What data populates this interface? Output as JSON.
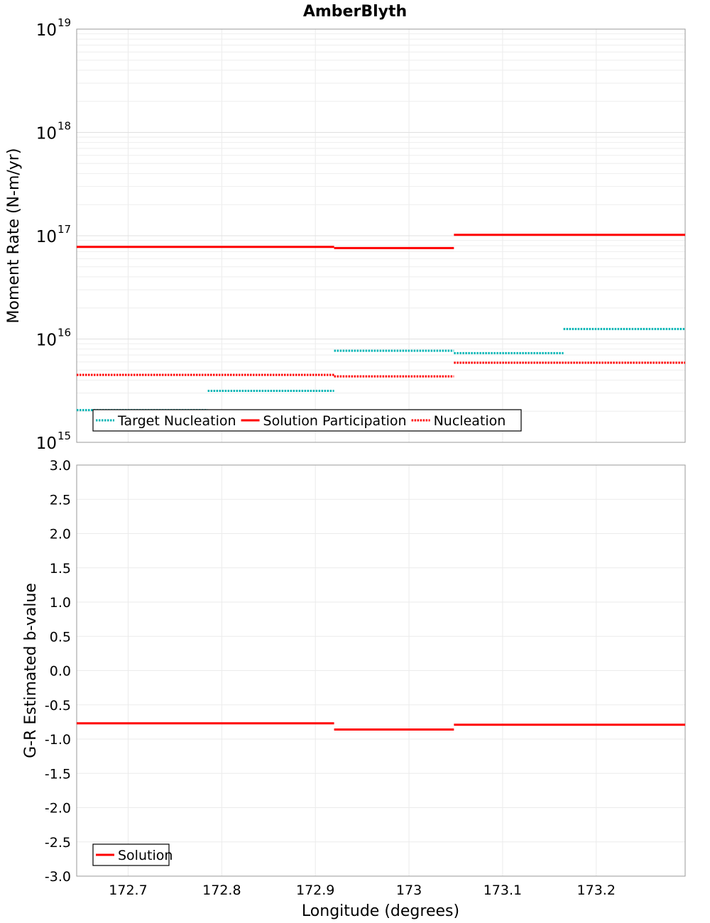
{
  "figure": {
    "title": "AmberBlyth",
    "xlabel": "Longitude (degrees)"
  },
  "chart_data": [
    {
      "type": "line",
      "subtype": "step",
      "ylabel": "Moment Rate (N-m/yr)",
      "yscale": "log",
      "ylim": [
        1000000000000000.0,
        1e+19
      ],
      "xlim": [
        172.645,
        173.295
      ],
      "x_ticks": [
        "172.7",
        "172.8",
        "172.9",
        "173",
        "173.1",
        "173.2"
      ],
      "x_tick_values": [
        172.7,
        172.8,
        172.9,
        173.0,
        173.1,
        173.2
      ],
      "y_ticks": [
        {
          "base": "10",
          "exp": "15",
          "value": 1000000000000000.0
        },
        {
          "base": "10",
          "exp": "16",
          "value": 1e+16
        },
        {
          "base": "10",
          "exp": "17",
          "value": 1e+17
        },
        {
          "base": "10",
          "exp": "18",
          "value": 1e+18
        },
        {
          "base": "10",
          "exp": "19",
          "value": 1e+19
        }
      ],
      "grid": true,
      "legend_position": "bottom-left",
      "series": [
        {
          "name": "Target Nucleation",
          "color": "#00b4b4",
          "style": "dotted",
          "segments": [
            {
              "x0": 172.645,
              "x1": 172.785,
              "y": 2050000000000000.0
            },
            {
              "x0": 172.785,
              "x1": 172.92,
              "y": 3150000000000000.0
            },
            {
              "x0": 172.92,
              "x1": 173.048,
              "y": 7700000000000000.0
            },
            {
              "x0": 173.048,
              "x1": 173.165,
              "y": 7300000000000000.0
            },
            {
              "x0": 173.165,
              "x1": 173.295,
              "y": 1.25e+16
            }
          ]
        },
        {
          "name": "Solution Participation",
          "color": "#ff0000",
          "style": "solid",
          "segments": [
            {
              "x0": 172.645,
              "x1": 172.92,
              "y": 7.8e+16
            },
            {
              "x0": 172.92,
              "x1": 173.048,
              "y": 7.6e+16
            },
            {
              "x0": 173.048,
              "x1": 173.295,
              "y": 1.02e+17
            }
          ]
        },
        {
          "name": "Nucleation",
          "color": "#ff0000",
          "style": "dotted",
          "segments": [
            {
              "x0": 172.645,
              "x1": 172.92,
              "y": 4500000000000000.0
            },
            {
              "x0": 172.92,
              "x1": 173.048,
              "y": 4350000000000000.0
            },
            {
              "x0": 173.048,
              "x1": 173.295,
              "y": 5900000000000000.0
            }
          ]
        }
      ]
    },
    {
      "type": "line",
      "subtype": "step",
      "ylabel": "G-R Estimated b-value",
      "ylim": [
        -3.0,
        3.0
      ],
      "xlim": [
        172.645,
        173.295
      ],
      "x_ticks": [
        "172.7",
        "172.8",
        "172.9",
        "173",
        "173.1",
        "173.2"
      ],
      "x_tick_values": [
        172.7,
        172.8,
        172.9,
        173.0,
        173.1,
        173.2
      ],
      "y_ticks": [
        "3.0",
        "2.5",
        "2.0",
        "1.5",
        "1.0",
        "0.5",
        "0.0",
        "-0.5",
        "-1.0",
        "-1.5",
        "-2.0",
        "-2.5",
        "-3.0"
      ],
      "grid": true,
      "legend_position": "bottom-left",
      "series": [
        {
          "name": "Solution",
          "color": "#ff0000",
          "style": "solid",
          "segments": [
            {
              "x0": 172.645,
              "x1": 172.92,
              "y": -0.77
            },
            {
              "x0": 172.92,
              "x1": 173.048,
              "y": -0.86
            },
            {
              "x0": 173.048,
              "x1": 173.295,
              "y": -0.79
            }
          ]
        }
      ]
    }
  ]
}
